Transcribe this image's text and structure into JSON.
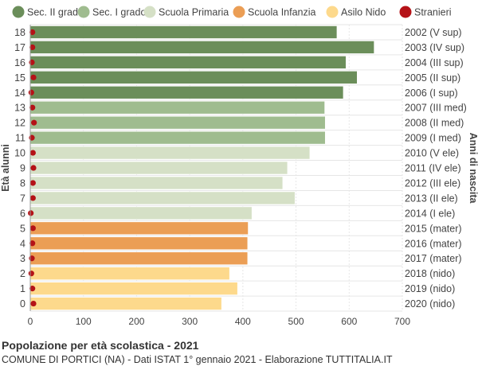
{
  "chart_data": {
    "type": "bar",
    "orientation": "horizontal",
    "title": "Popolazione per età scolastica - 2021",
    "subtitle": "COMUNE DI PORTICI (NA) - Dati ISTAT 1° gennaio 2021 - Elaborazione TUTTITALIA.IT",
    "ylabel": "Età alunni",
    "ylabel_right": "Anni di nascita",
    "xlim": [
      0,
      700
    ],
    "xticks": [
      0,
      100,
      200,
      300,
      400,
      500,
      600,
      700
    ],
    "grid": true,
    "legend_position": "top",
    "legend": [
      {
        "name": "Sec. II grado",
        "color": "#6b8e5a"
      },
      {
        "name": "Sec. I grado",
        "color": "#9fbc8f"
      },
      {
        "name": "Scuola Primaria",
        "color": "#d5e0c6"
      },
      {
        "name": "Scuola Infanzia",
        "color": "#eb9e55"
      },
      {
        "name": "Asilo Nido",
        "color": "#fdd98c"
      },
      {
        "name": "Stranieri",
        "color": "#b51217"
      }
    ],
    "rows": [
      {
        "age": "18",
        "birth": "2002 (V sup)",
        "value": 577,
        "stranieri": 4,
        "group": 0
      },
      {
        "age": "17",
        "birth": "2003 (IV sup)",
        "value": 647,
        "stranieri": 4,
        "group": 0
      },
      {
        "age": "16",
        "birth": "2004 (III sup)",
        "value": 594,
        "stranieri": 3,
        "group": 0
      },
      {
        "age": "15",
        "birth": "2005 (II sup)",
        "value": 615,
        "stranieri": 6,
        "group": 0
      },
      {
        "age": "14",
        "birth": "2006 (I sup)",
        "value": 589,
        "stranieri": 2,
        "group": 0
      },
      {
        "age": "13",
        "birth": "2007 (III med)",
        "value": 554,
        "stranieri": 4,
        "group": 1
      },
      {
        "age": "12",
        "birth": "2008 (II med)",
        "value": 555,
        "stranieri": 7,
        "group": 1
      },
      {
        "age": "11",
        "birth": "2009 (I med)",
        "value": 555,
        "stranieri": 3,
        "group": 1
      },
      {
        "age": "10",
        "birth": "2010 (V ele)",
        "value": 526,
        "stranieri": 5,
        "group": 2
      },
      {
        "age": "9",
        "birth": "2011 (IV ele)",
        "value": 484,
        "stranieri": 6,
        "group": 2
      },
      {
        "age": "8",
        "birth": "2012 (III ele)",
        "value": 475,
        "stranieri": 5,
        "group": 2
      },
      {
        "age": "7",
        "birth": "2013 (II ele)",
        "value": 498,
        "stranieri": 5,
        "group": 2
      },
      {
        "age": "6",
        "birth": "2014 (I ele)",
        "value": 417,
        "stranieri": 1,
        "group": 2
      },
      {
        "age": "5",
        "birth": "2015 (mater)",
        "value": 410,
        "stranieri": 5,
        "group": 3
      },
      {
        "age": "4",
        "birth": "2016 (mater)",
        "value": 409,
        "stranieri": 4,
        "group": 3
      },
      {
        "age": "3",
        "birth": "2017 (mater)",
        "value": 409,
        "stranieri": 3,
        "group": 3
      },
      {
        "age": "2",
        "birth": "2018 (nido)",
        "value": 375,
        "stranieri": 2,
        "group": 4
      },
      {
        "age": "1",
        "birth": "2019 (nido)",
        "value": 390,
        "stranieri": 4,
        "group": 4
      },
      {
        "age": "0",
        "birth": "2020 (nido)",
        "value": 360,
        "stranieri": 6,
        "group": 4
      }
    ]
  }
}
